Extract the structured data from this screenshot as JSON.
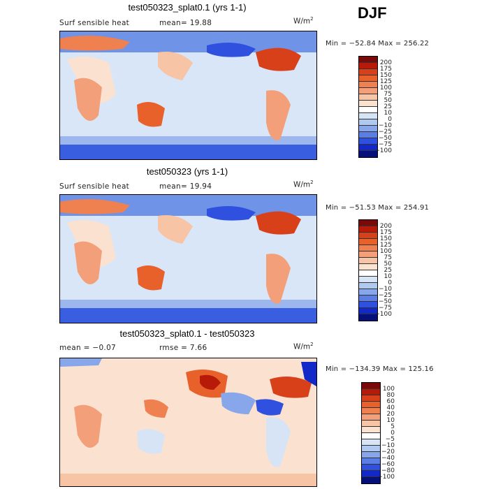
{
  "season": "DJF",
  "panels": [
    {
      "title": "test050323_splat0.1 (yrs 1-1)",
      "label_left": "Surf sensible heat",
      "label_mid": "mean=   19.88",
      "unit": "W/m",
      "unit_exp": "2",
      "minmax": "Min = −52.84  Max = 256.22",
      "colorbar": {
        "ticks": [
          "200",
          "175",
          "150",
          "125",
          "100",
          "75",
          "50",
          "25",
          "10",
          "0",
          "−10",
          "−25",
          "−50",
          "−75",
          "−100"
        ],
        "colors": [
          "#7a0a0a",
          "#b81a0a",
          "#d8401a",
          "#e8602a",
          "#ef8050",
          "#f3a07a",
          "#f7c4a6",
          "#fbe2d0",
          "#ffffff",
          "#d6e4f6",
          "#b0c9f0",
          "#87a7ea",
          "#5a7ee6",
          "#3050e0",
          "#1228c8",
          "#06107a"
        ]
      }
    },
    {
      "title": "test050323 (yrs 1-1)",
      "label_left": "Surf sensible heat",
      "label_mid": "mean=   19.94",
      "unit": "W/m",
      "unit_exp": "2",
      "minmax": "Min = −51.53  Max = 254.91",
      "colorbar": {
        "ticks": [
          "200",
          "175",
          "150",
          "125",
          "100",
          "75",
          "50",
          "25",
          "10",
          "0",
          "−10",
          "−25",
          "−50",
          "−75",
          "−100"
        ],
        "colors": [
          "#7a0a0a",
          "#b81a0a",
          "#d8401a",
          "#e8602a",
          "#ef8050",
          "#f3a07a",
          "#f7c4a6",
          "#fbe2d0",
          "#ffffff",
          "#d6e4f6",
          "#b0c9f0",
          "#87a7ea",
          "#5a7ee6",
          "#3050e0",
          "#1228c8",
          "#06107a"
        ]
      }
    },
    {
      "title": "test050323_splat0.1 - test050323",
      "label_left": "mean =   −0.07",
      "label_mid": "rmse =    7.66",
      "unit": "W/m",
      "unit_exp": "2",
      "minmax": "Min = −134.39  Max = 125.16",
      "colorbar": {
        "ticks": [
          "100",
          "80",
          "60",
          "40",
          "20",
          "10",
          "5",
          "0",
          "−5",
          "−10",
          "−20",
          "−40",
          "−60",
          "−80",
          "−100"
        ],
        "colors": [
          "#7a0a0a",
          "#b81a0a",
          "#d8401a",
          "#e8602a",
          "#ef8050",
          "#f3a07a",
          "#f7c4a6",
          "#fbe2d0",
          "#ffffff",
          "#d6e4f6",
          "#b0c9f0",
          "#87a7ea",
          "#5a7ee6",
          "#3050e0",
          "#1228c8",
          "#06107a"
        ]
      }
    }
  ]
}
